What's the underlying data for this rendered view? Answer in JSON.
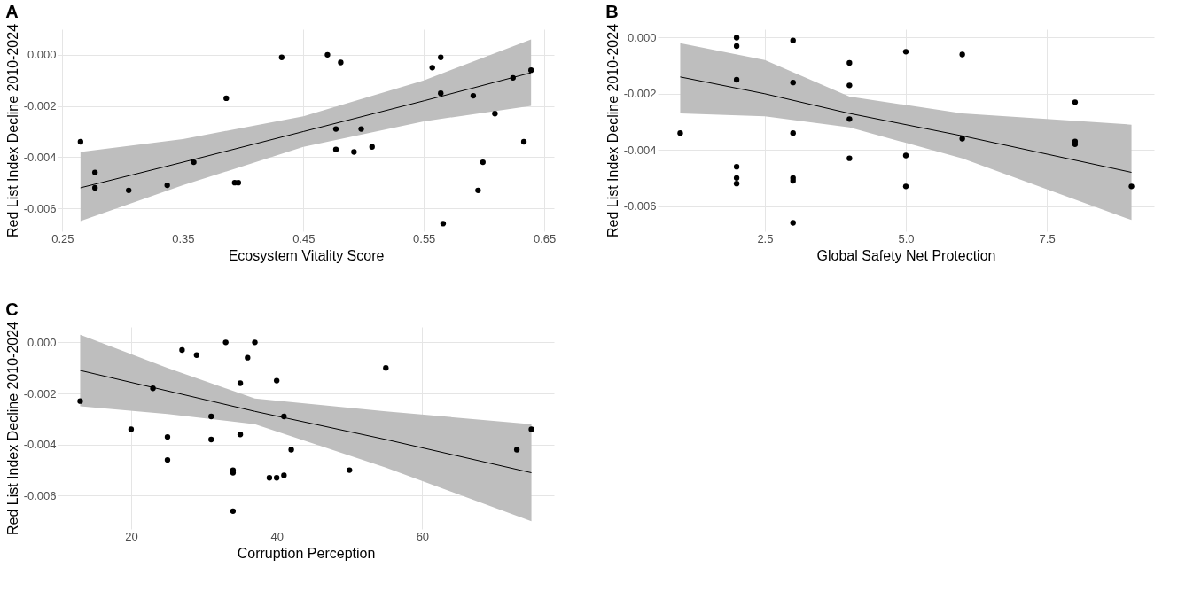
{
  "chart_data": [
    {
      "type": "scatter",
      "title": "A",
      "xlabel": "Ecosystem Vitality Score",
      "ylabel": "Red List Index Decline 2010-2024",
      "xlim": [
        0.246,
        0.658
      ],
      "xticks": [
        0.25,
        0.35,
        0.45,
        0.55,
        0.65
      ],
      "ylim": [
        -0.0069,
        0.001
      ],
      "yticks": [
        {
          "value": -0.006,
          "label": "-0.006"
        },
        {
          "value": -0.004,
          "label": "-0.004"
        },
        {
          "value": -0.002,
          "label": "-0.002"
        },
        {
          "value": 0,
          "label": "0.000"
        }
      ],
      "grid": true,
      "series": [
        {
          "marker": "circle",
          "color": "#000000",
          "x": [
            0.265,
            0.277,
            0.277,
            0.305,
            0.337,
            0.359,
            0.386,
            0.393,
            0.396,
            0.432,
            0.47,
            0.481,
            0.477,
            0.477,
            0.492,
            0.498,
            0.507,
            0.557,
            0.564,
            0.564,
            0.566,
            0.591,
            0.595,
            0.599,
            0.609,
            0.624,
            0.633,
            0.639
          ],
          "values": [
            -0.0034,
            -0.0046,
            -0.0052,
            -0.0053,
            -0.0051,
            -0.0042,
            -0.0017,
            -0.005,
            -0.005,
            -0.0001,
            0.0,
            -0.0003,
            -0.0029,
            -0.0037,
            -0.0038,
            -0.0029,
            -0.0036,
            -0.0005,
            -0.0001,
            -0.0015,
            -0.0066,
            -0.0016,
            -0.0053,
            -0.0042,
            -0.0023,
            -0.0009,
            -0.0034,
            -0.0006
          ]
        },
        {
          "type": "line",
          "marker": "none",
          "color": "#000000",
          "line_style": "solid",
          "x": [
            0.265,
            0.35,
            0.45,
            0.55,
            0.639
          ],
          "values": [
            -0.0052,
            -0.0042,
            -0.003,
            -0.0018,
            -0.0007
          ],
          "lower": [
            -0.0065,
            -0.0051,
            -0.0036,
            -0.0026,
            -0.002
          ],
          "upper": [
            -0.0038,
            -0.0033,
            -0.0024,
            -0.001,
            0.0006
          ]
        }
      ]
    },
    {
      "type": "scatter",
      "title": "B",
      "xlabel": "Global Safety Net Protection",
      "ylabel": "Red List Index Decline 2010-2024",
      "xlim": [
        0.6,
        9.4
      ],
      "xticks": [
        2.5,
        {
          "value": 5,
          "label": "5.0"
        },
        7.5
      ],
      "ylim": [
        -0.0069,
        0.0003
      ],
      "yticks": [
        {
          "value": -0.006,
          "label": "-0.006"
        },
        {
          "value": -0.004,
          "label": "-0.004"
        },
        {
          "value": -0.002,
          "label": "-0.002"
        },
        {
          "value": 0,
          "label": "0.000"
        }
      ],
      "grid": true,
      "series": [
        {
          "marker": "circle",
          "color": "#000000",
          "x": [
            1,
            2,
            2,
            2,
            2,
            2,
            2,
            3,
            3,
            3,
            3,
            3,
            3,
            4,
            4,
            4,
            4,
            5,
            5,
            5,
            6,
            6,
            8,
            8,
            8,
            9
          ],
          "values": [
            -0.0034,
            0.0,
            -0.0003,
            -0.0015,
            -0.0046,
            -0.005,
            -0.0052,
            -0.0001,
            -0.0016,
            -0.0034,
            -0.005,
            -0.0051,
            -0.0066,
            -0.0009,
            -0.0017,
            -0.0029,
            -0.0043,
            -0.0005,
            -0.0042,
            -0.0053,
            -0.0006,
            -0.0036,
            -0.0023,
            -0.0037,
            -0.0038,
            -0.0053
          ]
        },
        {
          "type": "line",
          "marker": "none",
          "color": "#000000",
          "line_style": "solid",
          "x": [
            1,
            2.5,
            4,
            6,
            9
          ],
          "values": [
            -0.0014,
            -0.002,
            -0.0027,
            -0.0035,
            -0.0048
          ],
          "lower": [
            -0.0027,
            -0.0028,
            -0.0032,
            -0.0043,
            -0.0065
          ],
          "upper": [
            -0.0002,
            -0.0008,
            -0.0021,
            -0.0027,
            -0.0031
          ]
        }
      ]
    },
    {
      "type": "scatter",
      "title": "C",
      "xlabel": "Corruption Perception",
      "ylabel": "Red List Index Decline 2010-2024",
      "xlim": [
        9.9,
        78.1
      ],
      "xticks": [
        20,
        40,
        60
      ],
      "ylim": [
        -0.0073,
        0.0006
      ],
      "yticks": [
        {
          "value": -0.006,
          "label": "-0.006"
        },
        {
          "value": -0.004,
          "label": "-0.004"
        },
        {
          "value": -0.002,
          "label": "-0.002"
        },
        {
          "value": 0,
          "label": "0.000"
        }
      ],
      "grid": true,
      "series": [
        {
          "marker": "circle",
          "color": "#000000",
          "x": [
            13,
            20,
            23,
            25,
            25,
            27,
            29,
            31,
            31,
            33,
            34,
            34,
            34,
            35,
            35,
            36,
            37,
            39,
            40,
            40,
            41,
            41,
            42,
            50,
            55,
            73,
            75
          ],
          "values": [
            -0.0023,
            -0.0034,
            -0.0018,
            -0.0037,
            -0.0046,
            -0.0003,
            -0.0005,
            -0.0029,
            -0.0038,
            0.0,
            -0.005,
            -0.0051,
            -0.0066,
            -0.0016,
            -0.0036,
            -0.0006,
            0.0,
            -0.0053,
            -0.0053,
            -0.0015,
            -0.0029,
            -0.0052,
            -0.0042,
            -0.005,
            -0.001,
            -0.0042,
            -0.0034
          ]
        },
        {
          "type": "line",
          "marker": "none",
          "color": "#000000",
          "line_style": "solid",
          "x": [
            13,
            25,
            37,
            55,
            75
          ],
          "values": [
            -0.0011,
            -0.0019,
            -0.0027,
            -0.0038,
            -0.0051
          ],
          "lower": [
            -0.0025,
            -0.0028,
            -0.0032,
            -0.0049,
            -0.007
          ],
          "upper": [
            0.0003,
            -0.001,
            -0.0022,
            -0.0027,
            -0.0032
          ]
        }
      ]
    }
  ]
}
